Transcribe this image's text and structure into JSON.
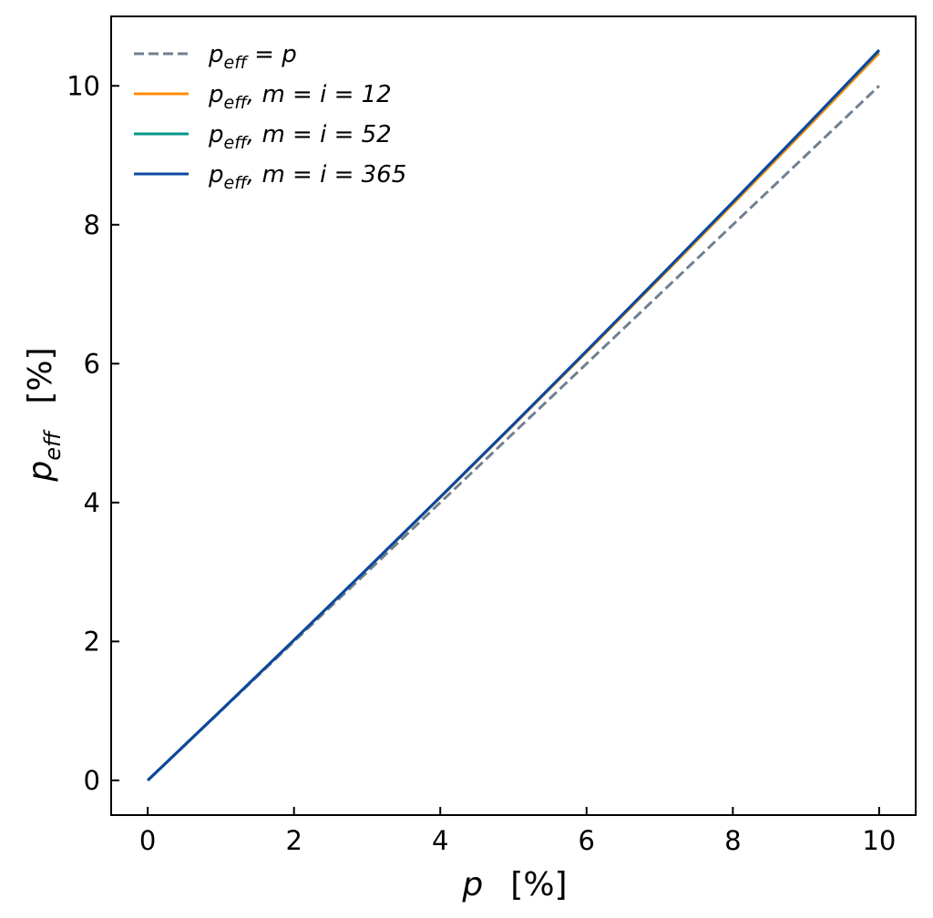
{
  "chart_data": {
    "type": "line",
    "xlabel": {
      "var": "p",
      "unit": "[%]"
    },
    "ylabel": {
      "var": "p",
      "sub": "eff",
      "unit": "[%]"
    },
    "xlim": [
      -0.5,
      10.5
    ],
    "ylim": [
      -0.5,
      11.0
    ],
    "xticks": [
      0,
      2,
      4,
      6,
      8,
      10
    ],
    "yticks": [
      0,
      2,
      4,
      6,
      8,
      10
    ],
    "grid": false,
    "legend_position": "top-left",
    "colors": {
      "identity": "#708090",
      "m12": "#ff8c00",
      "m52": "#009688",
      "m365": "#0d47a1"
    },
    "series": [
      {
        "key": "identity",
        "legend": {
          "prefix": "p",
          "sub": "eff",
          "rest": " = p"
        },
        "style": "dashed",
        "x": [
          0,
          1,
          2,
          3,
          4,
          5,
          6,
          7,
          8,
          9,
          10
        ],
        "values": [
          0,
          1,
          2,
          3,
          4,
          5,
          6,
          7,
          8,
          9,
          10
        ]
      },
      {
        "key": "m12",
        "legend": {
          "prefix": "p",
          "sub": "eff",
          "rest": ", m = i = 12"
        },
        "style": "solid",
        "x": [
          0,
          1,
          2,
          3,
          4,
          5,
          6,
          7,
          8,
          9,
          10
        ],
        "values": [
          0,
          1.0046,
          2.0184,
          3.0416,
          4.0742,
          5.1162,
          6.1678,
          7.229,
          8.3,
          9.3807,
          10.4713
        ]
      },
      {
        "key": "m52",
        "legend": {
          "prefix": "p",
          "sub": "eff",
          "rest": ", m = i = 52"
        },
        "style": "solid",
        "x": [
          0,
          1,
          2,
          3,
          4,
          5,
          6,
          7,
          8,
          9,
          10
        ],
        "values": [
          0,
          1.0049,
          2.0196,
          3.0444,
          4.0793,
          5.1246,
          6.1804,
          7.2468,
          8.3241,
          9.4122,
          10.5065
        ]
      },
      {
        "key": "m365",
        "legend": {
          "prefix": "p",
          "sub": "eff",
          "rest": ", m = i = 365"
        },
        "style": "solid",
        "x": [
          0,
          1,
          2,
          3,
          4,
          5,
          6,
          7,
          8,
          9,
          10
        ],
        "values": [
          0,
          1.005,
          2.0201,
          3.0453,
          4.0808,
          5.1267,
          6.1831,
          7.2501,
          8.3278,
          9.4162,
          10.5156
        ]
      }
    ]
  }
}
